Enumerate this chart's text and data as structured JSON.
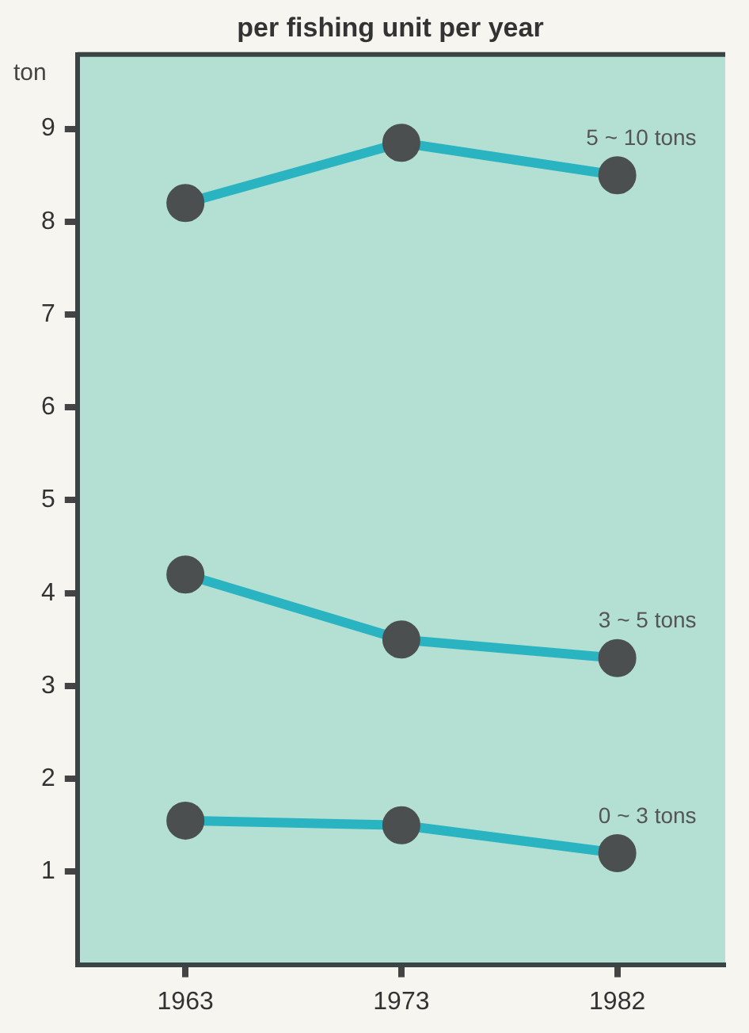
{
  "chart_data": {
    "type": "line",
    "title": "per fishing unit per year",
    "ylabel": "ton",
    "categories": [
      "1963",
      "1973",
      "1982"
    ],
    "series": [
      {
        "name": "5 ~ 10 tons",
        "color": "#2ab3c0",
        "values": [
          8.2,
          8.85,
          8.5
        ]
      },
      {
        "name": "3 ~ 5 tons",
        "color": "#2ab3c0",
        "values": [
          4.2,
          3.5,
          3.3
        ]
      },
      {
        "name": "0 ~ 3 tons",
        "color": "#2ab3c0",
        "values": [
          1.55,
          1.5,
          1.2
        ]
      }
    ],
    "ylim": [
      0,
      9.8
    ],
    "yticks": [
      1,
      2,
      3,
      4,
      5,
      6,
      7,
      8,
      9
    ],
    "grid": false,
    "legend": false,
    "marker": "circle",
    "line_style": "solid"
  }
}
